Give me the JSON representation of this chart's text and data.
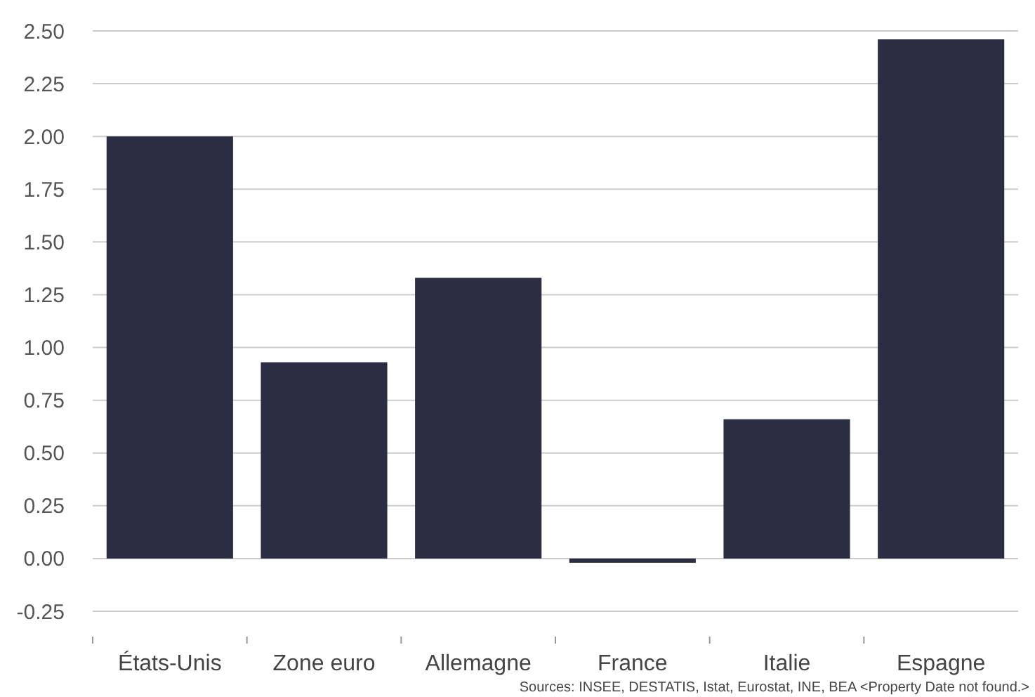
{
  "chart_data": {
    "type": "bar",
    "categories": [
      "États-Unis",
      "Zone euro",
      "Allemagne",
      "France",
      "Italie",
      "Espagne"
    ],
    "values": [
      2.0,
      0.93,
      1.33,
      -0.02,
      0.66,
      2.46
    ],
    "color": "#2b2d42",
    "ylim": [
      -0.25,
      2.5
    ],
    "yticks": [
      {
        "value": -0.25,
        "label": "-0.25"
      },
      {
        "value": 0,
        "label": "0.00"
      },
      {
        "value": 0.25,
        "label": "0.25"
      },
      {
        "value": 0.5,
        "label": "0.50"
      },
      {
        "value": 0.75,
        "label": "0.75"
      },
      {
        "value": 1,
        "label": "1.00"
      },
      {
        "value": 1.25,
        "label": "1.25"
      },
      {
        "value": 1.5,
        "label": "1.50"
      },
      {
        "value": 1.75,
        "label": "1.75"
      },
      {
        "value": 2,
        "label": "2.00"
      },
      {
        "value": 2.25,
        "label": "2.25"
      },
      {
        "value": 2.5,
        "label": "2.50"
      }
    ],
    "grid": "y",
    "annotations": [
      "Sources: INSEE, DESTATIS, Istat, Eurostat, INE, BEA <Property Date not found.>"
    ]
  }
}
